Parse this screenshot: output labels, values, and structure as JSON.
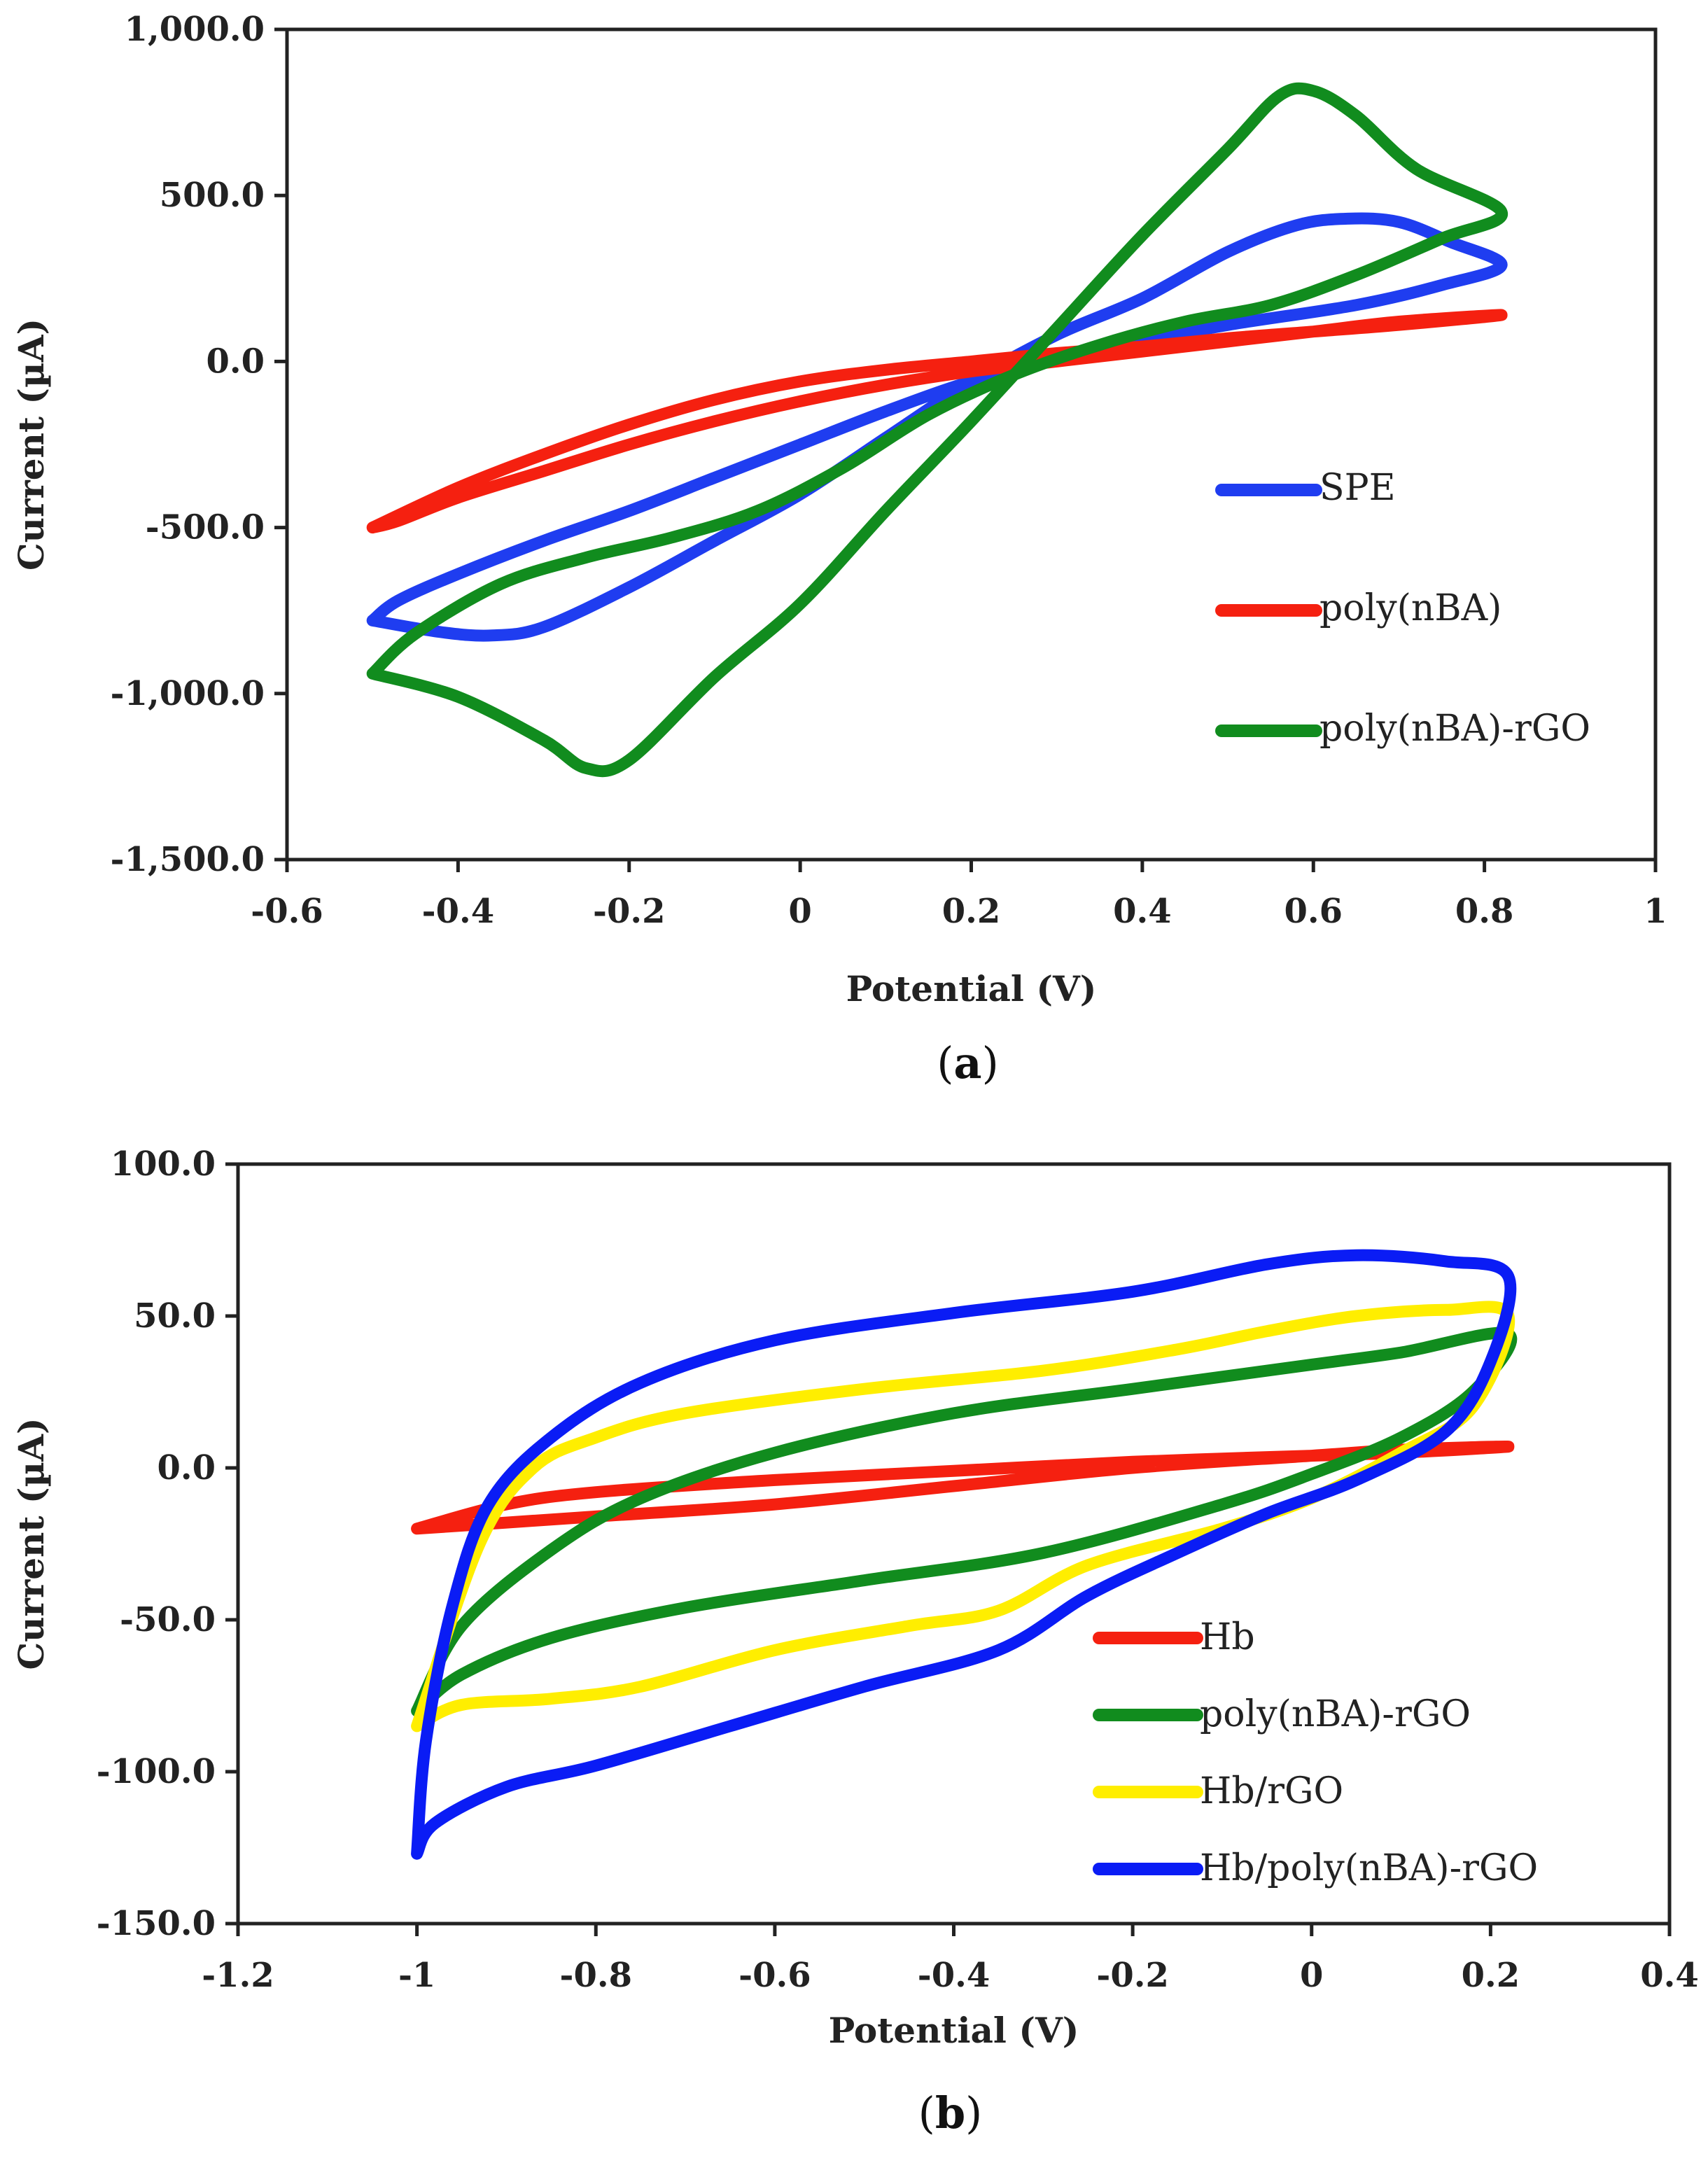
{
  "chart_data": [
    {
      "type": "line",
      "panel_label": "a",
      "title": "",
      "xlabel": "Potential (V)",
      "ylabel": "Current (µA)",
      "xlim": [
        -0.6,
        1
      ],
      "ylim": [
        -1500,
        1000
      ],
      "xticks": [
        -0.6,
        -0.4,
        -0.2,
        0,
        0.2,
        0.4,
        0.6,
        0.8,
        1
      ],
      "yticks": [
        -1500,
        -1000,
        -500,
        0,
        500,
        1000
      ],
      "xtick_labels": [
        "-0.6",
        "-0.4",
        "-0.2",
        "0",
        "0.2",
        "0.4",
        "0.6",
        "0.8",
        "1"
      ],
      "ytick_labels": [
        "-1,500.0",
        "-1,000.0",
        "-500.0",
        "0.0",
        "500.0",
        "1,000.0"
      ],
      "legend_position": "right",
      "series": [
        {
          "name": "SPE",
          "color": "#1f3df0",
          "points": [
            [
              -0.5,
              -780
            ],
            [
              -0.42,
              -815
            ],
            [
              -0.36,
              -825
            ],
            [
              -0.3,
              -800
            ],
            [
              -0.2,
              -680
            ],
            [
              -0.1,
              -540
            ],
            [
              0,
              -400
            ],
            [
              0.1,
              -230
            ],
            [
              0.2,
              -60
            ],
            [
              0.3,
              80
            ],
            [
              0.4,
              190
            ],
            [
              0.5,
              330
            ],
            [
              0.58,
              410
            ],
            [
              0.64,
              430
            ],
            [
              0.7,
              420
            ],
            [
              0.76,
              360
            ],
            [
              0.82,
              290
            ],
            [
              0.75,
              230
            ],
            [
              0.65,
              170
            ],
            [
              0.5,
              110
            ],
            [
              0.4,
              60
            ],
            [
              0.3,
              5
            ],
            [
              0.2,
              -60
            ],
            [
              0.1,
              -150
            ],
            [
              0,
              -250
            ],
            [
              -0.1,
              -350
            ],
            [
              -0.2,
              -450
            ],
            [
              -0.3,
              -540
            ],
            [
              -0.4,
              -640
            ],
            [
              -0.47,
              -720
            ],
            [
              -0.5,
              -780
            ]
          ]
        },
        {
          "name": "poly(nBA)",
          "color": "#f52010",
          "points": [
            [
              -0.5,
              -500
            ],
            [
              -0.4,
              -380
            ],
            [
              -0.3,
              -280
            ],
            [
              -0.2,
              -190
            ],
            [
              -0.1,
              -115
            ],
            [
              0,
              -60
            ],
            [
              0.1,
              -25
            ],
            [
              0.2,
              0
            ],
            [
              0.3,
              25
            ],
            [
              0.4,
              45
            ],
            [
              0.5,
              70
            ],
            [
              0.6,
              90
            ],
            [
              0.7,
              110
            ],
            [
              0.82,
              140
            ],
            [
              0.7,
              120
            ],
            [
              0.6,
              90
            ],
            [
              0.5,
              60
            ],
            [
              0.4,
              30
            ],
            [
              0.3,
              0
            ],
            [
              0.2,
              -30
            ],
            [
              0.1,
              -70
            ],
            [
              0,
              -120
            ],
            [
              -0.1,
              -180
            ],
            [
              -0.2,
              -250
            ],
            [
              -0.3,
              -330
            ],
            [
              -0.4,
              -410
            ],
            [
              -0.47,
              -480
            ],
            [
              -0.5,
              -500
            ]
          ]
        },
        {
          "name": "poly(nBA)-rGO",
          "color": "#118c1e",
          "points": [
            [
              -0.5,
              -940
            ],
            [
              -0.4,
              -1010
            ],
            [
              -0.3,
              -1140
            ],
            [
              -0.25,
              -1225
            ],
            [
              -0.2,
              -1200
            ],
            [
              -0.1,
              -950
            ],
            [
              0,
              -730
            ],
            [
              0.1,
              -450
            ],
            [
              0.2,
              -180
            ],
            [
              0.3,
              100
            ],
            [
              0.4,
              380
            ],
            [
              0.5,
              640
            ],
            [
              0.56,
              800
            ],
            [
              0.6,
              815
            ],
            [
              0.65,
              740
            ],
            [
              0.72,
              580
            ],
            [
              0.82,
              450
            ],
            [
              0.75,
              370
            ],
            [
              0.65,
              260
            ],
            [
              0.55,
              170
            ],
            [
              0.45,
              120
            ],
            [
              0.35,
              50
            ],
            [
              0.25,
              -40
            ],
            [
              0.15,
              -160
            ],
            [
              0.05,
              -320
            ],
            [
              -0.05,
              -450
            ],
            [
              -0.15,
              -530
            ],
            [
              -0.25,
              -590
            ],
            [
              -0.35,
              -670
            ],
            [
              -0.45,
              -820
            ],
            [
              -0.5,
              -940
            ]
          ]
        }
      ]
    },
    {
      "type": "line",
      "panel_label": "b",
      "title": "",
      "xlabel": "Potential (V)",
      "ylabel": "Current (µA)",
      "xlim": [
        -1.2,
        0.4
      ],
      "ylim": [
        -150,
        100
      ],
      "xticks": [
        -1.2,
        -1,
        -0.8,
        -0.6,
        -0.4,
        -0.2,
        0,
        0.2,
        0.4
      ],
      "yticks": [
        -150,
        -100,
        -50,
        0,
        50,
        100
      ],
      "xtick_labels": [
        "-1.2",
        "-1",
        "-0.8",
        "-0.6",
        "-0.4",
        "-0.2",
        "0",
        "0.2",
        "0.4"
      ],
      "ytick_labels": [
        "-150.0",
        "-100.0",
        "-50.0",
        "0.0",
        "50.0",
        "100.0"
      ],
      "legend_position": "bottom-right",
      "series": [
        {
          "name": "Hb",
          "color": "#f52010",
          "points": [
            [
              -1,
              -20
            ],
            [
              -0.9,
              -12
            ],
            [
              -0.8,
              -8
            ],
            [
              -0.6,
              -4
            ],
            [
              -0.4,
              -1
            ],
            [
              -0.2,
              2
            ],
            [
              0,
              4
            ],
            [
              0.1,
              5
            ],
            [
              0.22,
              7
            ],
            [
              0.1,
              6
            ],
            [
              0,
              4
            ],
            [
              -0.2,
              0
            ],
            [
              -0.4,
              -6
            ],
            [
              -0.6,
              -12
            ],
            [
              -0.8,
              -16
            ],
            [
              -0.9,
              -18
            ],
            [
              -1,
              -20
            ]
          ]
        },
        {
          "name": "poly(nBA)-rGO",
          "color": "#118c1e",
          "points": [
            [
              -1,
              -80
            ],
            [
              -0.95,
              -68
            ],
            [
              -0.85,
              -56
            ],
            [
              -0.7,
              -46
            ],
            [
              -0.5,
              -37
            ],
            [
              -0.3,
              -28
            ],
            [
              -0.1,
              -12
            ],
            [
              0,
              -2
            ],
            [
              0.1,
              10
            ],
            [
              0.18,
              25
            ],
            [
              0.22,
              44
            ],
            [
              0.1,
              38
            ],
            [
              0,
              34
            ],
            [
              -0.2,
              26
            ],
            [
              -0.4,
              18
            ],
            [
              -0.6,
              5
            ],
            [
              -0.75,
              -10
            ],
            [
              -0.85,
              -27
            ],
            [
              -0.95,
              -52
            ],
            [
              -1,
              -80
            ]
          ]
        },
        {
          "name": "Hb/rGO",
          "color": "#ffee00",
          "points": [
            [
              -1,
              -85
            ],
            [
              -0.95,
              -78
            ],
            [
              -0.85,
              -76
            ],
            [
              -0.75,
              -72
            ],
            [
              -0.6,
              -60
            ],
            [
              -0.45,
              -52
            ],
            [
              -0.35,
              -47
            ],
            [
              -0.25,
              -32
            ],
            [
              -0.1,
              -20
            ],
            [
              0,
              -10
            ],
            [
              0.1,
              5
            ],
            [
              0.18,
              20
            ],
            [
              0.22,
              50
            ],
            [
              0.15,
              52
            ],
            [
              0.05,
              50
            ],
            [
              -0.05,
              45
            ],
            [
              -0.15,
              39
            ],
            [
              -0.3,
              32
            ],
            [
              -0.5,
              26
            ],
            [
              -0.7,
              18
            ],
            [
              -0.8,
              10
            ],
            [
              -0.87,
              0
            ],
            [
              -0.93,
              -25
            ],
            [
              -1,
              -85
            ]
          ]
        },
        {
          "name": "Hb/poly(nBA)-rGO",
          "color": "#0a1cf5",
          "points": [
            [
              -1,
              -127
            ],
            [
              -0.98,
              -117
            ],
            [
              -0.9,
              -105
            ],
            [
              -0.8,
              -98
            ],
            [
              -0.65,
              -85
            ],
            [
              -0.5,
              -72
            ],
            [
              -0.35,
              -60
            ],
            [
              -0.25,
              -42
            ],
            [
              -0.15,
              -28
            ],
            [
              -0.05,
              -15
            ],
            [
              0.05,
              -4
            ],
            [
              0.15,
              12
            ],
            [
              0.2,
              35
            ],
            [
              0.22,
              63
            ],
            [
              0.15,
              68
            ],
            [
              0.05,
              70
            ],
            [
              -0.05,
              67
            ],
            [
              -0.2,
              58
            ],
            [
              -0.4,
              51
            ],
            [
              -0.6,
              42
            ],
            [
              -0.75,
              28
            ],
            [
              -0.85,
              10
            ],
            [
              -0.92,
              -12
            ],
            [
              -0.96,
              -45
            ],
            [
              -0.99,
              -90
            ],
            [
              -1,
              -127
            ]
          ]
        }
      ]
    }
  ]
}
